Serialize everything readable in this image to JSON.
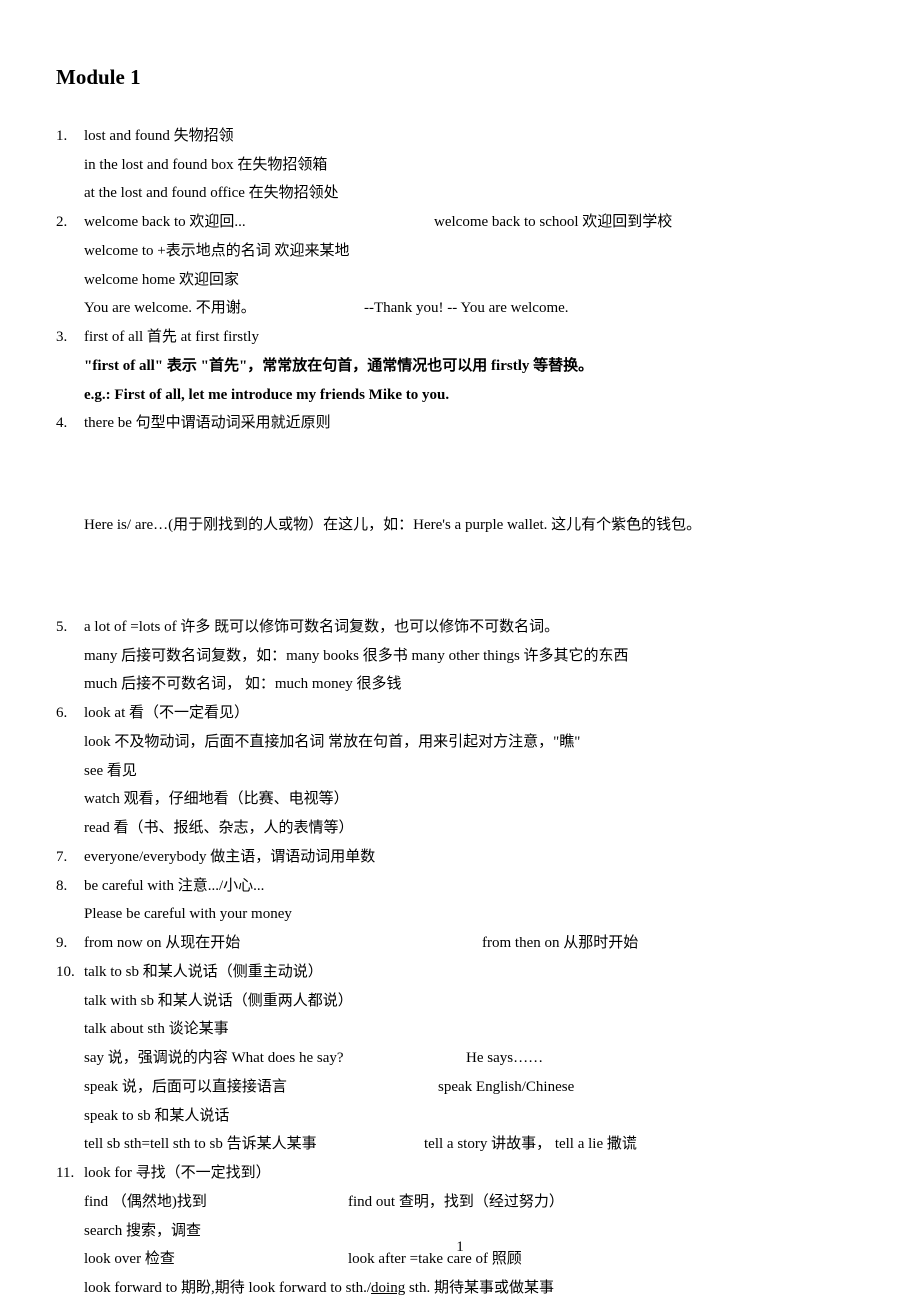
{
  "title": "Module 1",
  "pageNumber": "1",
  "items": [
    {
      "num": "1.",
      "lines": [
        {
          "type": "plain",
          "text": "lost and found   失物招领"
        },
        {
          "type": "plain",
          "text": "in the lost and found box 在失物招领箱"
        },
        {
          "type": "plain",
          "text": "at the lost and found office 在失物招领处"
        }
      ]
    },
    {
      "num": "2.",
      "lines": [
        {
          "type": "cols",
          "left": "welcome back to  欢迎回...",
          "right": "welcome back to school  欢迎回到学校",
          "leftWidth": "350px"
        },
        {
          "type": "plain",
          "text": "welcome to +表示地点的名词    欢迎来某地"
        },
        {
          "type": "plain",
          "text": "welcome home  欢迎回家"
        },
        {
          "type": "cols",
          "left": "You are welcome.  不用谢。",
          "right": "--Thank you!      -- You are welcome.",
          "leftWidth": "280px"
        }
      ]
    },
    {
      "num": "3.",
      "lines": [
        {
          "type": "plain",
          "text": "first of all  首先    at first    firstly"
        },
        {
          "type": "bold",
          "text": "\"first of all\"  表示 \"首先\"，常常放在句首，通常情况也可以用 firstly 等替换。"
        },
        {
          "type": "bold",
          "text": "e.g.:    First of all, let me introduce my friends Mike to you."
        }
      ]
    },
    {
      "num": "4.",
      "lines": [
        {
          "type": "plain",
          "text": "there be  句型中谓语动词采用就近原则"
        },
        {
          "type": "gap-big",
          "text": "Here is/ are…(用于刚找到的人或物）在这儿，如：Here's a purple wallet.  这儿有个紫色的钱包。"
        }
      ]
    },
    {
      "num": "5.",
      "lines": [
        {
          "type": "plain",
          "text": "a lot of =lots of  许多  既可以修饰可数名词复数，也可以修饰不可数名词。"
        },
        {
          "type": "plain",
          "text": "many 后接可数名词复数，如：many books   很多书       many other things  许多其它的东西"
        },
        {
          "type": "plain",
          "text": "much 后接不可数名词，    如：much money  很多钱"
        }
      ]
    },
    {
      "num": "6.",
      "lines": [
        {
          "type": "plain",
          "text": "look at  看（不一定看见）"
        },
        {
          "type": "plain",
          "text": "look 不及物动词，后面不直接加名词 常放在句首，用来引起对方注意，\"瞧\""
        },
        {
          "type": "plain",
          "text": "see 看见"
        },
        {
          "type": "plain",
          "text": "watch 观看，仔细地看（比赛、电视等）"
        },
        {
          "type": "plain",
          "text": "read 看（书、报纸、杂志，人的表情等）"
        }
      ]
    },
    {
      "num": "7.",
      "lines": [
        {
          "type": "plain",
          "text": "everyone/everybody 做主语，谓语动词用单数"
        }
      ]
    },
    {
      "num": "8.",
      "lines": [
        {
          "type": "plain",
          "text": "be careful with  注意.../小心..."
        },
        {
          "type": "plain",
          "text": "Please be careful with your money"
        }
      ]
    },
    {
      "num": "9.",
      "lines": [
        {
          "type": "cols",
          "left": "from now on  从现在开始",
          "right": "from then on  从那时开始",
          "leftWidth": "398px"
        }
      ]
    },
    {
      "num": "10.",
      "lines": [
        {
          "type": "plain",
          "text": "talk to sb  和某人说话（侧重主动说）"
        },
        {
          "type": "plain",
          "text": "talk with sb 和某人说话（侧重两人都说）"
        },
        {
          "type": "plain",
          "text": "talk about sth  谈论某事"
        },
        {
          "type": "cols",
          "left": "say 说，强调说的内容      What does he say?",
          "right": "He says……",
          "leftWidth": "382px"
        },
        {
          "type": "cols",
          "left": "speak 说，后面可以直接接语言",
          "right": "speak English/Chinese",
          "leftWidth": "354px"
        },
        {
          "type": "plain",
          "text": "speak to sb  和某人说话"
        },
        {
          "type": "cols",
          "left": "tell sb sth=tell sth to sb 告诉某人某事",
          "right": "tell a story  讲故事，  tell a lie  撒谎",
          "leftWidth": "340px"
        }
      ]
    },
    {
      "num": "11.",
      "lines": [
        {
          "type": "plain",
          "text": "look for  寻找（不一定找到）"
        },
        {
          "type": "cols",
          "left": "find （偶然地)找到",
          "right": "find out  查明，找到（经过努力）",
          "leftWidth": "264px"
        },
        {
          "type": "plain",
          "text": "search 搜索，调查"
        },
        {
          "type": "cols",
          "left": "look over 检查",
          "right": "look after =take care of  照顾",
          "leftWidth": "264px"
        },
        {
          "type": "mixed",
          "parts": [
            {
              "text": "look forward to  期盼,期待    look forward to sth./",
              "underline": false
            },
            {
              "text": "doing",
              "underline": true
            },
            {
              "text": " sth.  期待某事或做某事",
              "underline": false
            }
          ]
        }
      ]
    }
  ]
}
